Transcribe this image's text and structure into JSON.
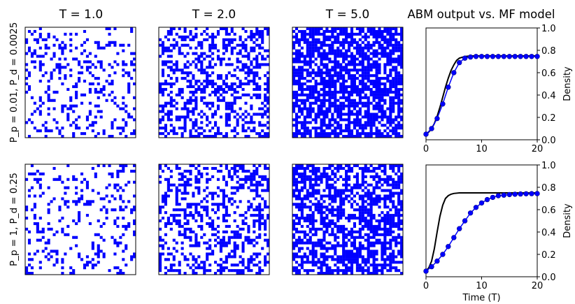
{
  "figure": {
    "column_titles": [
      "T = 1.0",
      "T = 2.0",
      "T = 5.0"
    ],
    "right_title": "ABM output vs. MF model",
    "row_labels": [
      "P_p = 0.01, P_d = 0.0025",
      "P_p = 1, P_d = 0.25"
    ],
    "colors": {
      "occupied": "#0000ff",
      "empty": "#ffffff",
      "abm": "#0000ff",
      "mf": "#000000"
    }
  },
  "chart_data": [
    {
      "type": "heatmap",
      "title": "T = 1.0",
      "row": "P_p = 0.01, P_d = 0.0025",
      "grid_size": 40,
      "occupied_fraction": 0.21,
      "pattern": "scattered"
    },
    {
      "type": "heatmap",
      "title": "T = 2.0",
      "row": "P_p = 0.01, P_d = 0.0025",
      "grid_size": 40,
      "occupied_fraction": 0.42,
      "pattern": "scattered"
    },
    {
      "type": "heatmap",
      "title": "T = 5.0",
      "row": "P_p = 0.01, P_d = 0.0025",
      "grid_size": 40,
      "occupied_fraction": 0.72,
      "pattern": "scattered"
    },
    {
      "type": "line",
      "title": "ABM output vs. MF model",
      "xlabel": "",
      "ylabel": "Density",
      "xlim": [
        0,
        20
      ],
      "ylim": [
        0,
        1
      ],
      "xticks": [
        0,
        10,
        20
      ],
      "yticks": [
        0.0,
        0.2,
        0.4,
        0.6,
        0.8,
        1.0
      ],
      "ytick_labels": [
        "0.0",
        "0.2",
        "0.4",
        "0.6",
        "0.8",
        "1.0"
      ],
      "yaxis_side": "right",
      "series": [
        {
          "style": "line",
          "color": "#000000",
          "x": [
            0,
            0.5,
            1,
            1.5,
            2,
            2.5,
            3,
            3.5,
            4,
            4.5,
            5,
            5.5,
            6,
            7,
            8,
            10,
            12,
            14,
            16,
            18,
            20
          ],
          "y": [
            0.05,
            0.07,
            0.1,
            0.145,
            0.21,
            0.29,
            0.38,
            0.47,
            0.55,
            0.62,
            0.67,
            0.71,
            0.73,
            0.745,
            0.75,
            0.75,
            0.75,
            0.75,
            0.75,
            0.75,
            0.75
          ]
        },
        {
          "style": "markers-line",
          "color": "#0000ff",
          "x": [
            0,
            1,
            2,
            3,
            4,
            5,
            6,
            7,
            8,
            9,
            10,
            11,
            12,
            13,
            14,
            15,
            16,
            17,
            18,
            19,
            20
          ],
          "y": [
            0.05,
            0.1,
            0.19,
            0.32,
            0.47,
            0.6,
            0.69,
            0.73,
            0.74,
            0.745,
            0.745,
            0.745,
            0.745,
            0.745,
            0.745,
            0.745,
            0.745,
            0.745,
            0.745,
            0.745,
            0.745
          ]
        }
      ]
    },
    {
      "type": "heatmap",
      "title": "",
      "row": "P_p = 1, P_d = 0.25",
      "grid_size": 40,
      "occupied_fraction": 0.18,
      "pattern": "clustered"
    },
    {
      "type": "heatmap",
      "title": "",
      "row": "P_p = 1, P_d = 0.25",
      "grid_size": 40,
      "occupied_fraction": 0.38,
      "pattern": "clustered"
    },
    {
      "type": "heatmap",
      "title": "",
      "row": "P_p = 1, P_d = 0.25",
      "grid_size": 40,
      "occupied_fraction": 0.62,
      "pattern": "clustered"
    },
    {
      "type": "line",
      "title": "",
      "xlabel": "Time (T)",
      "ylabel": "Density",
      "xlim": [
        0,
        20
      ],
      "ylim": [
        0,
        1
      ],
      "xticks": [
        0,
        10,
        20
      ],
      "yticks": [
        0.0,
        0.2,
        0.4,
        0.6,
        0.8,
        1.0
      ],
      "ytick_labels": [
        "0.0",
        "0.2",
        "0.4",
        "0.6",
        "0.8",
        "1.0"
      ],
      "yaxis_side": "right",
      "series": [
        {
          "style": "line",
          "color": "#000000",
          "x": [
            0,
            0.5,
            1,
            1.5,
            2,
            2.5,
            3,
            3.5,
            4,
            4.5,
            5,
            6,
            7,
            8,
            10,
            12,
            14,
            16,
            18,
            20
          ],
          "y": [
            0.05,
            0.08,
            0.14,
            0.25,
            0.4,
            0.54,
            0.64,
            0.7,
            0.725,
            0.738,
            0.745,
            0.75,
            0.75,
            0.75,
            0.75,
            0.75,
            0.75,
            0.75,
            0.75,
            0.75
          ]
        },
        {
          "style": "markers-line",
          "color": "#0000ff",
          "x": [
            0,
            1,
            2,
            3,
            4,
            5,
            6,
            7,
            8,
            9,
            10,
            11,
            12,
            13,
            14,
            15,
            16,
            17,
            18,
            19,
            20
          ],
          "y": [
            0.05,
            0.09,
            0.14,
            0.2,
            0.27,
            0.35,
            0.43,
            0.5,
            0.57,
            0.62,
            0.66,
            0.69,
            0.71,
            0.725,
            0.73,
            0.735,
            0.738,
            0.74,
            0.742,
            0.743,
            0.744
          ]
        }
      ]
    }
  ]
}
